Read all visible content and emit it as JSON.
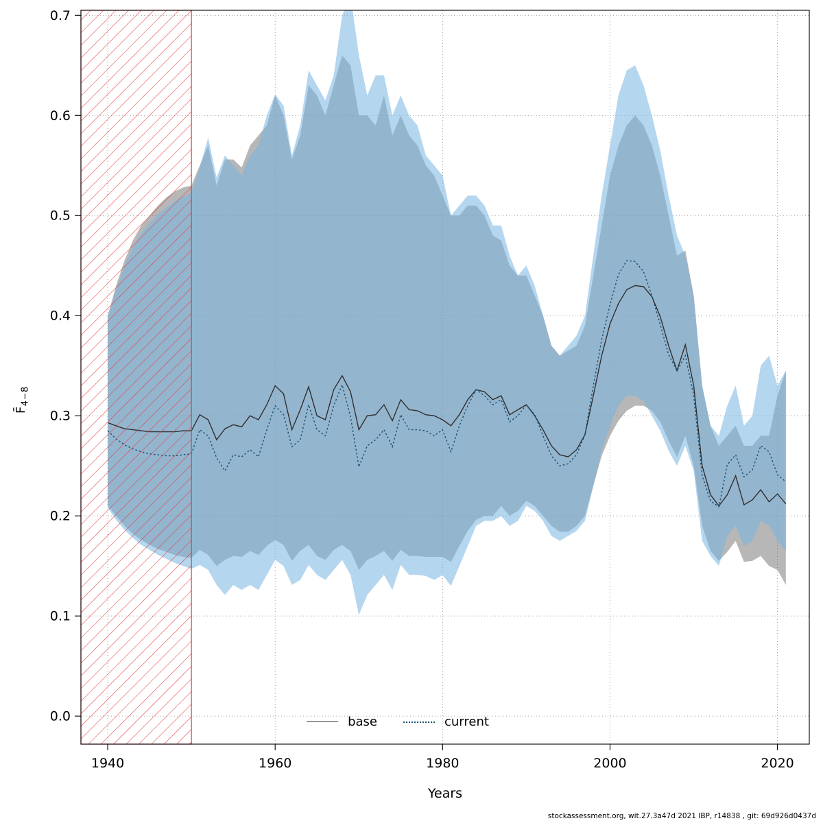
{
  "figure": {
    "footer": "stockassessment.org, wit.27.3a47d 2021 IBP, r14838 , git: 69d926d0437d"
  },
  "chart_data": {
    "type": "line",
    "title": "",
    "xlabel": "Years",
    "ylabel": "F̄4−8",
    "ylabel_main": "F̄",
    "ylabel_sub": "4−8",
    "xlim": [
      1936.8,
      2023.8
    ],
    "ylim": [
      -0.028,
      0.705
    ],
    "x_ticks": [
      1940,
      1960,
      1980,
      2000,
      2020
    ],
    "y_ticks": [
      "0.0",
      "0.1",
      "0.2",
      "0.3",
      "0.4",
      "0.5",
      "0.6",
      "0.7"
    ],
    "grid": true,
    "legend_position": "bottom-center",
    "excluded_region": {
      "x_start": 1936.8,
      "x_end": 1950,
      "color": "#e23b3b",
      "style": "diagonal-hatch"
    },
    "years": [
      1940,
      1941,
      1942,
      1943,
      1944,
      1945,
      1946,
      1947,
      1948,
      1949,
      1950,
      1951,
      1952,
      1953,
      1954,
      1955,
      1956,
      1957,
      1958,
      1959,
      1960,
      1961,
      1962,
      1963,
      1964,
      1965,
      1966,
      1967,
      1968,
      1969,
      1970,
      1971,
      1972,
      1973,
      1974,
      1975,
      1976,
      1977,
      1978,
      1979,
      1980,
      1981,
      1982,
      1983,
      1984,
      1985,
      1986,
      1987,
      1988,
      1989,
      1990,
      1991,
      1992,
      1993,
      1994,
      1995,
      1996,
      1997,
      1998,
      1999,
      2000,
      2001,
      2002,
      2003,
      2004,
      2005,
      2006,
      2007,
      2008,
      2009,
      2010,
      2011,
      2012,
      2013,
      2014,
      2015,
      2016,
      2017,
      2018,
      2019,
      2020,
      2021
    ],
    "series": [
      {
        "name": "base",
        "line_style": "solid",
        "line_color": "#2f2f2f",
        "band_color": "rgba(95,95,95,0.45)",
        "values": [
          0.293,
          0.29,
          0.287,
          0.286,
          0.285,
          0.284,
          0.284,
          0.284,
          0.284,
          0.285,
          0.285,
          0.301,
          0.296,
          0.276,
          0.287,
          0.291,
          0.289,
          0.3,
          0.296,
          0.311,
          0.33,
          0.322,
          0.286,
          0.306,
          0.329,
          0.3,
          0.296,
          0.326,
          0.34,
          0.324,
          0.286,
          0.3,
          0.301,
          0.311,
          0.295,
          0.316,
          0.306,
          0.305,
          0.301,
          0.3,
          0.296,
          0.29,
          0.301,
          0.316,
          0.326,
          0.324,
          0.316,
          0.32,
          0.301,
          0.306,
          0.311,
          0.3,
          0.286,
          0.27,
          0.261,
          0.259,
          0.266,
          0.281,
          0.32,
          0.36,
          0.392,
          0.412,
          0.426,
          0.43,
          0.429,
          0.419,
          0.399,
          0.37,
          0.345,
          0.371,
          0.33,
          0.25,
          0.221,
          0.21,
          0.221,
          0.24,
          0.211,
          0.216,
          0.226,
          0.214,
          0.222,
          0.212
        ],
        "lower": [
          0.21,
          0.2,
          0.19,
          0.182,
          0.176,
          0.171,
          0.167,
          0.164,
          0.161,
          0.159,
          0.158,
          0.166,
          0.161,
          0.15,
          0.156,
          0.16,
          0.159,
          0.165,
          0.161,
          0.17,
          0.176,
          0.171,
          0.155,
          0.165,
          0.171,
          0.16,
          0.156,
          0.166,
          0.171,
          0.165,
          0.146,
          0.156,
          0.16,
          0.165,
          0.155,
          0.166,
          0.16,
          0.16,
          0.159,
          0.159,
          0.159,
          0.154,
          0.17,
          0.185,
          0.196,
          0.2,
          0.2,
          0.21,
          0.2,
          0.205,
          0.215,
          0.21,
          0.2,
          0.19,
          0.184,
          0.184,
          0.19,
          0.2,
          0.23,
          0.26,
          0.28,
          0.295,
          0.305,
          0.31,
          0.31,
          0.305,
          0.294,
          0.275,
          0.259,
          0.28,
          0.25,
          0.19,
          0.165,
          0.155,
          0.164,
          0.175,
          0.154,
          0.155,
          0.16,
          0.15,
          0.146,
          0.131
        ],
        "upper": [
          0.4,
          0.43,
          0.455,
          0.475,
          0.49,
          0.5,
          0.51,
          0.518,
          0.524,
          0.528,
          0.53,
          0.55,
          0.57,
          0.53,
          0.556,
          0.556,
          0.548,
          0.57,
          0.58,
          0.59,
          0.62,
          0.6,
          0.556,
          0.58,
          0.63,
          0.62,
          0.6,
          0.63,
          0.66,
          0.65,
          0.6,
          0.6,
          0.59,
          0.62,
          0.58,
          0.6,
          0.58,
          0.57,
          0.55,
          0.54,
          0.52,
          0.5,
          0.5,
          0.51,
          0.51,
          0.5,
          0.48,
          0.475,
          0.45,
          0.44,
          0.44,
          0.42,
          0.4,
          0.37,
          0.36,
          0.365,
          0.37,
          0.39,
          0.44,
          0.49,
          0.54,
          0.57,
          0.59,
          0.6,
          0.59,
          0.57,
          0.54,
          0.5,
          0.46,
          0.465,
          0.42,
          0.33,
          0.29,
          0.27,
          0.28,
          0.29,
          0.27,
          0.27,
          0.28,
          0.28,
          0.32,
          0.345
        ]
      },
      {
        "name": "current",
        "line_style": "dotted",
        "line_color": "#15506e",
        "band_color": "rgba(120,180,225,0.55)",
        "values": [
          0.285,
          0.277,
          0.271,
          0.267,
          0.264,
          0.262,
          0.261,
          0.26,
          0.26,
          0.261,
          0.262,
          0.286,
          0.28,
          0.258,
          0.245,
          0.261,
          0.259,
          0.266,
          0.259,
          0.286,
          0.31,
          0.301,
          0.269,
          0.276,
          0.311,
          0.286,
          0.28,
          0.31,
          0.331,
          0.299,
          0.249,
          0.27,
          0.276,
          0.286,
          0.269,
          0.301,
          0.286,
          0.286,
          0.285,
          0.28,
          0.286,
          0.264,
          0.29,
          0.31,
          0.326,
          0.32,
          0.311,
          0.316,
          0.294,
          0.3,
          0.311,
          0.301,
          0.28,
          0.26,
          0.25,
          0.252,
          0.261,
          0.281,
          0.33,
          0.376,
          0.411,
          0.441,
          0.455,
          0.454,
          0.444,
          0.42,
          0.391,
          0.361,
          0.345,
          0.36,
          0.32,
          0.24,
          0.215,
          0.209,
          0.251,
          0.261,
          0.239,
          0.246,
          0.27,
          0.264,
          0.241,
          0.234
        ],
        "lower": [
          0.208,
          0.196,
          0.186,
          0.178,
          0.171,
          0.166,
          0.161,
          0.157,
          0.153,
          0.15,
          0.147,
          0.151,
          0.146,
          0.131,
          0.121,
          0.131,
          0.126,
          0.131,
          0.126,
          0.141,
          0.156,
          0.15,
          0.131,
          0.136,
          0.151,
          0.141,
          0.136,
          0.146,
          0.156,
          0.141,
          0.101,
          0.121,
          0.131,
          0.141,
          0.126,
          0.151,
          0.141,
          0.141,
          0.14,
          0.136,
          0.141,
          0.13,
          0.15,
          0.17,
          0.19,
          0.195,
          0.195,
          0.2,
          0.19,
          0.195,
          0.21,
          0.205,
          0.195,
          0.18,
          0.175,
          0.18,
          0.185,
          0.195,
          0.23,
          0.265,
          0.29,
          0.31,
          0.32,
          0.32,
          0.315,
          0.3,
          0.285,
          0.265,
          0.25,
          0.27,
          0.245,
          0.175,
          0.16,
          0.15,
          0.18,
          0.19,
          0.17,
          0.175,
          0.195,
          0.19,
          0.175,
          0.165
        ],
        "upper": [
          0.398,
          0.426,
          0.45,
          0.468,
          0.482,
          0.492,
          0.501,
          0.508,
          0.514,
          0.519,
          0.523,
          0.548,
          0.578,
          0.538,
          0.56,
          0.55,
          0.54,
          0.56,
          0.57,
          0.6,
          0.621,
          0.61,
          0.56,
          0.59,
          0.645,
          0.63,
          0.615,
          0.64,
          0.7,
          0.72,
          0.66,
          0.62,
          0.64,
          0.64,
          0.6,
          0.62,
          0.6,
          0.59,
          0.56,
          0.55,
          0.54,
          0.5,
          0.51,
          0.52,
          0.52,
          0.51,
          0.49,
          0.49,
          0.46,
          0.44,
          0.45,
          0.43,
          0.4,
          0.37,
          0.36,
          0.37,
          0.38,
          0.4,
          0.46,
          0.52,
          0.57,
          0.62,
          0.645,
          0.65,
          0.63,
          0.6,
          0.565,
          0.52,
          0.48,
          0.46,
          0.42,
          0.33,
          0.29,
          0.28,
          0.31,
          0.33,
          0.29,
          0.3,
          0.35,
          0.36,
          0.33,
          0.345
        ]
      }
    ],
    "legend": {
      "entries": [
        {
          "label": "base"
        },
        {
          "label": "current"
        }
      ]
    }
  }
}
